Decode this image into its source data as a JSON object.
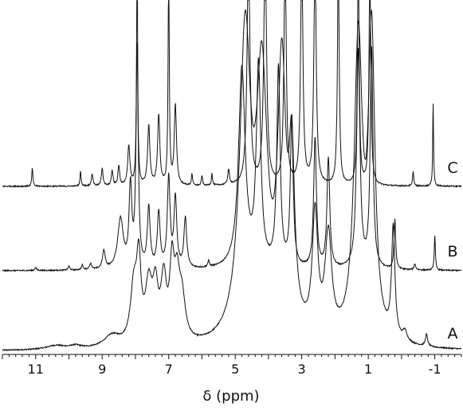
{
  "chart_data": {
    "type": "line",
    "title": "",
    "xlabel": "δ (ppm)",
    "ylabel": "",
    "x_reversed": true,
    "xlim": [
      12.0,
      -1.8
    ],
    "x_ticks": [
      "11",
      "9",
      "7",
      "5",
      "3",
      "1",
      "-1"
    ],
    "x_tick_values": [
      11,
      9,
      7,
      5,
      3,
      1,
      -1
    ],
    "grid": false,
    "stacked_offset": true,
    "series": [
      {
        "name": "A",
        "baseline_level": 0.0,
        "peaks": [
          {
            "ppm": 10.4,
            "height": 0.04,
            "width": 0.35
          },
          {
            "ppm": 9.8,
            "height": 0.03,
            "width": 0.2
          },
          {
            "ppm": 8.7,
            "height": 0.12,
            "width": 0.3
          },
          {
            "ppm": 8.05,
            "height": 0.55,
            "width": 0.12
          },
          {
            "ppm": 7.9,
            "height": 0.75,
            "width": 0.08
          },
          {
            "ppm": 7.6,
            "height": 0.55,
            "width": 0.12
          },
          {
            "ppm": 7.4,
            "height": 0.5,
            "width": 0.1
          },
          {
            "ppm": 7.15,
            "height": 0.6,
            "width": 0.1
          },
          {
            "ppm": 6.9,
            "height": 0.7,
            "width": 0.08
          },
          {
            "ppm": 6.75,
            "height": 0.55,
            "width": 0.1
          },
          {
            "ppm": 6.6,
            "height": 0.4,
            "width": 0.12
          },
          {
            "ppm": 4.7,
            "height": 3.0,
            "width": 0.2
          },
          {
            "ppm": 4.2,
            "height": 2.5,
            "width": 0.2
          },
          {
            "ppm": 3.6,
            "height": 2.6,
            "width": 0.15
          },
          {
            "ppm": 3.3,
            "height": 1.6,
            "width": 0.1
          },
          {
            "ppm": 2.6,
            "height": 1.2,
            "width": 0.1
          },
          {
            "ppm": 2.2,
            "height": 1.0,
            "width": 0.12
          },
          {
            "ppm": 1.3,
            "height": 3.0,
            "width": 0.15
          },
          {
            "ppm": 0.9,
            "height": 3.0,
            "width": 0.12
          },
          {
            "ppm": 0.25,
            "height": 1.1,
            "width": 0.06
          },
          {
            "ppm": -0.1,
            "height": 0.1,
            "width": 0.08
          },
          {
            "ppm": -0.75,
            "height": 0.12,
            "width": 0.04
          }
        ]
      },
      {
        "name": "B",
        "baseline_level": 0.78,
        "peaks": [
          {
            "ppm": 11.0,
            "height": 0.03,
            "width": 0.03
          },
          {
            "ppm": 10.0,
            "height": 0.04,
            "width": 0.03
          },
          {
            "ppm": 9.6,
            "height": 0.05,
            "width": 0.03
          },
          {
            "ppm": 9.35,
            "height": 0.06,
            "width": 0.04
          },
          {
            "ppm": 8.95,
            "height": 0.18,
            "width": 0.05
          },
          {
            "ppm": 8.45,
            "height": 0.5,
            "width": 0.1
          },
          {
            "ppm": 8.15,
            "height": 0.8,
            "width": 0.05
          },
          {
            "ppm": 7.95,
            "height": 2.2,
            "width": 0.04
          },
          {
            "ppm": 7.6,
            "height": 0.6,
            "width": 0.05
          },
          {
            "ppm": 7.3,
            "height": 0.55,
            "width": 0.05
          },
          {
            "ppm": 7.0,
            "height": 0.9,
            "width": 0.05
          },
          {
            "ppm": 6.8,
            "height": 0.7,
            "width": 0.05
          },
          {
            "ppm": 6.5,
            "height": 0.5,
            "width": 0.05
          },
          {
            "ppm": 5.8,
            "height": 0.06,
            "width": 0.03
          },
          {
            "ppm": 4.8,
            "height": 2.0,
            "width": 0.12
          },
          {
            "ppm": 4.3,
            "height": 2.0,
            "width": 0.08
          },
          {
            "ppm": 3.7,
            "height": 2.0,
            "width": 0.06
          },
          {
            "ppm": 3.3,
            "height": 1.5,
            "width": 0.05
          },
          {
            "ppm": 2.6,
            "height": 1.3,
            "width": 0.05
          },
          {
            "ppm": 2.2,
            "height": 1.1,
            "width": 0.05
          },
          {
            "ppm": 1.3,
            "height": 2.2,
            "width": 0.06
          },
          {
            "ppm": 0.9,
            "height": 2.2,
            "width": 0.05
          },
          {
            "ppm": 0.2,
            "height": 0.5,
            "width": 0.03
          },
          {
            "ppm": -0.4,
            "height": 0.06,
            "width": 0.03
          },
          {
            "ppm": -1.0,
            "height": 0.35,
            "width": 0.02
          }
        ]
      },
      {
        "name": "C",
        "baseline_level": 1.6,
        "peaks": [
          {
            "ppm": 11.1,
            "height": 0.18,
            "width": 0.02
          },
          {
            "ppm": 9.65,
            "height": 0.15,
            "width": 0.02
          },
          {
            "ppm": 9.3,
            "height": 0.12,
            "width": 0.03
          },
          {
            "ppm": 9.0,
            "height": 0.18,
            "width": 0.03
          },
          {
            "ppm": 8.7,
            "height": 0.15,
            "width": 0.03
          },
          {
            "ppm": 8.5,
            "height": 0.2,
            "width": 0.03
          },
          {
            "ppm": 8.2,
            "height": 0.4,
            "width": 0.04
          },
          {
            "ppm": 7.95,
            "height": 2.4,
            "width": 0.02
          },
          {
            "ppm": 7.6,
            "height": 0.6,
            "width": 0.04
          },
          {
            "ppm": 7.3,
            "height": 0.7,
            "width": 0.04
          },
          {
            "ppm": 7.0,
            "height": 2.4,
            "width": 0.02
          },
          {
            "ppm": 6.8,
            "height": 0.8,
            "width": 0.04
          },
          {
            "ppm": 6.3,
            "height": 0.12,
            "width": 0.02
          },
          {
            "ppm": 6.0,
            "height": 0.1,
            "width": 0.02
          },
          {
            "ppm": 5.7,
            "height": 0.12,
            "width": 0.02
          },
          {
            "ppm": 5.2,
            "height": 0.15,
            "width": 0.03
          },
          {
            "ppm": 4.6,
            "height": 2.4,
            "width": 0.05
          },
          {
            "ppm": 4.1,
            "height": 2.4,
            "width": 0.05
          },
          {
            "ppm": 3.5,
            "height": 2.4,
            "width": 0.04
          },
          {
            "ppm": 3.0,
            "height": 2.4,
            "width": 0.04
          },
          {
            "ppm": 2.6,
            "height": 2.4,
            "width": 0.04
          },
          {
            "ppm": 1.9,
            "height": 2.4,
            "width": 0.03
          },
          {
            "ppm": 1.3,
            "height": 2.4,
            "width": 0.03
          },
          {
            "ppm": 0.95,
            "height": 2.4,
            "width": 0.03
          },
          {
            "ppm": -0.35,
            "height": 0.15,
            "width": 0.02
          },
          {
            "ppm": -0.95,
            "height": 0.85,
            "width": 0.015
          }
        ]
      }
    ],
    "colors": {
      "trace": "#111111",
      "axis": "#111111",
      "background": "#ffffff"
    }
  }
}
